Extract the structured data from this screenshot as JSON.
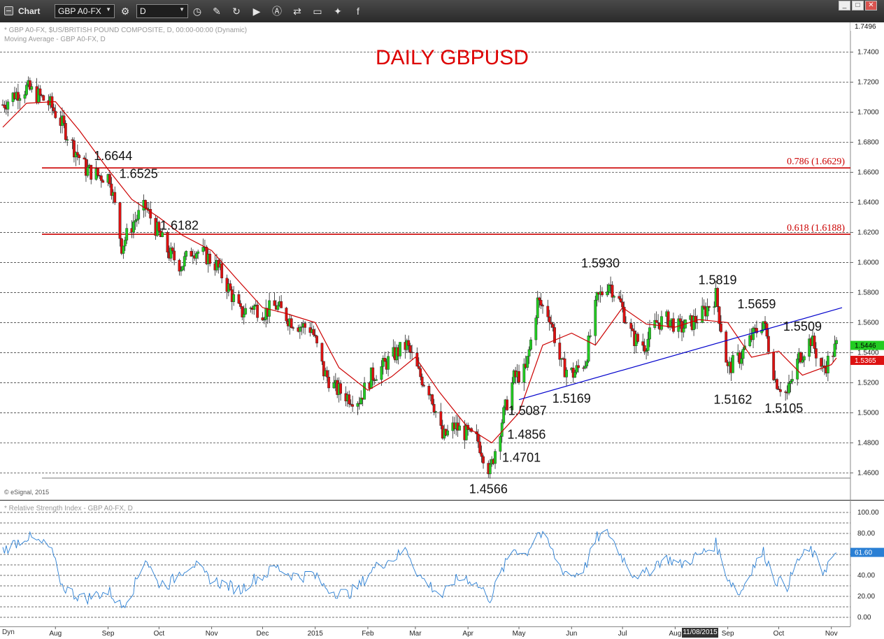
{
  "window": {
    "title": "Chart",
    "symbol": "GBP A0-FX",
    "interval": "D",
    "toolbar_icons": [
      "settings-gear-icon",
      "refresh-clock-icon",
      "pencil-icon",
      "cycle-icon",
      "play-icon",
      "alert-a-icon",
      "link-icon",
      "comment-icon",
      "twitter-icon",
      "facebook-icon"
    ],
    "buttons": [
      "window-min-icon",
      "window-max-icon",
      "window-close-icon"
    ]
  },
  "price_pane": {
    "header_line1": "* GBP A0-FX, $US/BRITISH POUND COMPOSITE, D, 00:00-00:00 (Dynamic)",
    "header_line2": "Moving Average - GBP A0-FX, D",
    "credit": "© eSignal, 2015",
    "axis_top_price": "1.7496",
    "last_price": "1.5446",
    "ma_value": "1.5365"
  },
  "rsi_pane": {
    "header": "* Relative Strength Index - GBP A0-FX, D",
    "last_value": "61.60"
  },
  "x_axis": {
    "date_tooltip": "11/08/2015",
    "left_label": "Dyn"
  },
  "chart_data": [
    {
      "type": "candlestick",
      "title": "DAILY GBPUSD",
      "x_range": [
        "2014-07-01",
        "2015-11-04"
      ],
      "ylim": [
        1.456,
        1.75
      ],
      "yticks": [
        "1.4600",
        "1.4800",
        "1.5000",
        "1.5200",
        "1.5400",
        "1.5600",
        "1.5800",
        "1.6000",
        "1.6200",
        "1.6400",
        "1.6600",
        "1.6800",
        "1.7000",
        "1.7200",
        "1.7400"
      ],
      "xticks": [
        {
          "label": "Aug",
          "date": "2014-08-01"
        },
        {
          "label": "Sep",
          "date": "2014-09-01"
        },
        {
          "label": "Oct",
          "date": "2014-10-01"
        },
        {
          "label": "Nov",
          "date": "2014-11-01"
        },
        {
          "label": "Dec",
          "date": "2014-12-01"
        },
        {
          "label": "2015",
          "date": "2015-01-01"
        },
        {
          "label": "Feb",
          "date": "2015-02-01"
        },
        {
          "label": "Mar",
          "date": "2015-03-01"
        },
        {
          "label": "Apr",
          "date": "2015-04-01"
        },
        {
          "label": "May",
          "date": "2015-05-01"
        },
        {
          "label": "Jun",
          "date": "2015-06-01"
        },
        {
          "label": "Jul",
          "date": "2015-07-01"
        },
        {
          "label": "Aug",
          "date": "2015-08-01"
        },
        {
          "label": "Sep",
          "date": "2015-09-01"
        },
        {
          "label": "Oct",
          "date": "2015-10-01"
        },
        {
          "label": "Nov",
          "date": "2015-11-01"
        }
      ],
      "close_path": [
        [
          "2014-07-01",
          1.705
        ],
        [
          "2014-07-08",
          1.712
        ],
        [
          "2014-07-15",
          1.716
        ],
        [
          "2014-07-22",
          1.711
        ],
        [
          "2014-07-29",
          1.705
        ],
        [
          "2014-08-05",
          1.692
        ],
        [
          "2014-08-12",
          1.676
        ],
        [
          "2014-08-19",
          1.662
        ],
        [
          "2014-08-26",
          1.658
        ],
        [
          "2014-09-02",
          1.657
        ],
        [
          "2014-09-09",
          1.611
        ],
        [
          "2014-09-16",
          1.627
        ],
        [
          "2014-09-23",
          1.637
        ],
        [
          "2014-09-30",
          1.621
        ],
        [
          "2014-10-07",
          1.606
        ],
        [
          "2014-10-14",
          1.598
        ],
        [
          "2014-10-21",
          1.609
        ],
        [
          "2014-10-28",
          1.605
        ],
        [
          "2014-11-04",
          1.598
        ],
        [
          "2014-11-11",
          1.583
        ],
        [
          "2014-11-18",
          1.566
        ],
        [
          "2014-11-25",
          1.571
        ],
        [
          "2014-12-02",
          1.567
        ],
        [
          "2014-12-09",
          1.571
        ],
        [
          "2014-12-16",
          1.563
        ],
        [
          "2014-12-23",
          1.558
        ],
        [
          "2014-12-30",
          1.556
        ],
        [
          "2015-01-06",
          1.527
        ],
        [
          "2015-01-13",
          1.516
        ],
        [
          "2015-01-20",
          1.511
        ],
        [
          "2015-01-27",
          1.509
        ],
        [
          "2015-02-03",
          1.524
        ],
        [
          "2015-02-10",
          1.531
        ],
        [
          "2015-02-17",
          1.539
        ],
        [
          "2015-02-24",
          1.545
        ],
        [
          "2015-03-03",
          1.526
        ],
        [
          "2015-03-10",
          1.514
        ],
        [
          "2015-03-17",
          1.483
        ],
        [
          "2015-03-24",
          1.491
        ],
        [
          "2015-03-31",
          1.486
        ],
        [
          "2015-04-07",
          1.481
        ],
        [
          "2015-04-14",
          1.461
        ],
        [
          "2015-04-21",
          1.495
        ],
        [
          "2015-04-28",
          1.523
        ],
        [
          "2015-05-05",
          1.528
        ],
        [
          "2015-05-12",
          1.574
        ],
        [
          "2015-05-19",
          1.565
        ],
        [
          "2015-05-26",
          1.531
        ],
        [
          "2015-06-02",
          1.526
        ],
        [
          "2015-06-09",
          1.534
        ],
        [
          "2015-06-16",
          1.575
        ],
        [
          "2015-06-23",
          1.587
        ],
        [
          "2015-06-30",
          1.572
        ],
        [
          "2015-07-07",
          1.55
        ],
        [
          "2015-07-14",
          1.545
        ],
        [
          "2015-07-21",
          1.56
        ],
        [
          "2015-07-28",
          1.562
        ],
        [
          "2015-08-04",
          1.556
        ],
        [
          "2015-08-11",
          1.56
        ],
        [
          "2015-08-18",
          1.567
        ],
        [
          "2015-08-25",
          1.578
        ],
        [
          "2015-09-01",
          1.529
        ],
        [
          "2015-09-08",
          1.537
        ],
        [
          "2015-09-15",
          1.55
        ],
        [
          "2015-09-22",
          1.561
        ],
        [
          "2015-09-29",
          1.522
        ],
        [
          "2015-10-06",
          1.512
        ],
        [
          "2015-10-13",
          1.537
        ],
        [
          "2015-10-20",
          1.549
        ],
        [
          "2015-10-27",
          1.528
        ],
        [
          "2015-11-04",
          1.5446
        ]
      ],
      "moving_average_path": [
        [
          "2014-07-01",
          1.69
        ],
        [
          "2014-07-15",
          1.706
        ],
        [
          "2014-08-01",
          1.707
        ],
        [
          "2014-08-15",
          1.688
        ],
        [
          "2014-09-01",
          1.662
        ],
        [
          "2014-09-15",
          1.642
        ],
        [
          "2014-10-01",
          1.63
        ],
        [
          "2014-10-15",
          1.618
        ],
        [
          "2014-11-01",
          1.608
        ],
        [
          "2014-11-15",
          1.59
        ],
        [
          "2014-12-01",
          1.57
        ],
        [
          "2014-12-15",
          1.566
        ],
        [
          "2015-01-01",
          1.56
        ],
        [
          "2015-01-15",
          1.53
        ],
        [
          "2015-02-01",
          1.515
        ],
        [
          "2015-02-15",
          1.524
        ],
        [
          "2015-03-01",
          1.537
        ],
        [
          "2015-03-15",
          1.514
        ],
        [
          "2015-04-01",
          1.49
        ],
        [
          "2015-04-15",
          1.48
        ],
        [
          "2015-05-01",
          1.5
        ],
        [
          "2015-05-15",
          1.545
        ],
        [
          "2015-06-01",
          1.553
        ],
        [
          "2015-06-15",
          1.545
        ],
        [
          "2015-07-01",
          1.57
        ],
        [
          "2015-07-15",
          1.559
        ],
        [
          "2015-08-01",
          1.557
        ],
        [
          "2015-08-15",
          1.562
        ],
        [
          "2015-09-01",
          1.56
        ],
        [
          "2015-09-15",
          1.537
        ],
        [
          "2015-10-01",
          1.541
        ],
        [
          "2015-10-15",
          1.525
        ],
        [
          "2015-11-01",
          1.532
        ],
        [
          "2015-11-04",
          1.5365
        ]
      ],
      "annotations": [
        {
          "text": "1.6644",
          "date": "2014-09-04",
          "value": 1.6644,
          "place": "above"
        },
        {
          "text": "1.6525",
          "date": "2014-09-19",
          "value": 1.6525,
          "place": "above"
        },
        {
          "text": "1.6182",
          "date": "2014-10-13",
          "value": 1.6182,
          "place": "above"
        },
        {
          "text": "1.5930",
          "date": "2015-06-18",
          "value": 1.593,
          "place": "above"
        },
        {
          "text": "1.5819",
          "date": "2015-08-26",
          "value": 1.5819,
          "place": "above"
        },
        {
          "text": "1.5659",
          "date": "2015-09-18",
          "value": 1.5659,
          "place": "above"
        },
        {
          "text": "1.5509",
          "date": "2015-10-15",
          "value": 1.5509,
          "place": "above"
        },
        {
          "text": "1.5087",
          "date": "2015-05-06",
          "value": 1.5087,
          "place": "below"
        },
        {
          "text": "1.5169",
          "date": "2015-06-01",
          "value": 1.5169,
          "place": "below"
        },
        {
          "text": "1.5162",
          "date": "2015-09-04",
          "value": 1.5162,
          "place": "below"
        },
        {
          "text": "1.5105",
          "date": "2015-10-04",
          "value": 1.5105,
          "place": "below"
        },
        {
          "text": "1.4856",
          "date": "2015-04-20",
          "value": 1.4856,
          "place": "right"
        },
        {
          "text": "1.4701",
          "date": "2015-04-17",
          "value": 1.4701,
          "place": "right"
        },
        {
          "text": "1.4566",
          "date": "2015-04-13",
          "value": 1.4566,
          "place": "below"
        }
      ],
      "horizontal_levels": [
        {
          "label": "0.786 (1.6629)",
          "value": 1.6629,
          "color": "#cc0000"
        },
        {
          "label": "0.618 (1.6188)",
          "value": 1.6188,
          "color": "#cc0000"
        }
      ],
      "trendline": {
        "from": [
          "2015-05-01",
          1.5087
        ],
        "to": [
          "2015-11-04",
          1.569
        ],
        "color": "#0000cc"
      },
      "colors": {
        "up": "#22cc22",
        "down": "#dd1111",
        "ma": "#cc0000",
        "grid": "#333333",
        "title": "#dd0000"
      }
    },
    {
      "type": "line",
      "title": "Relative Strength Index",
      "ylim": [
        0,
        100
      ],
      "yticks": [
        "0.00",
        "20.00",
        "40.00",
        "60.00",
        "80.00",
        "100.00"
      ],
      "last_value": 61.6,
      "color": "#2a7fd4",
      "series": [
        [
          "2014-07-01",
          64
        ],
        [
          "2014-07-15",
          77
        ],
        [
          "2014-07-29",
          66
        ],
        [
          "2014-08-05",
          30
        ],
        [
          "2014-08-12",
          22
        ],
        [
          "2014-08-19",
          18
        ],
        [
          "2014-08-26",
          22
        ],
        [
          "2014-09-02",
          24
        ],
        [
          "2014-09-09",
          10
        ],
        [
          "2014-09-16",
          28
        ],
        [
          "2014-09-23",
          57
        ],
        [
          "2014-09-30",
          33
        ],
        [
          "2014-10-07",
          32
        ],
        [
          "2014-10-14",
          44
        ],
        [
          "2014-10-21",
          52
        ],
        [
          "2014-10-28",
          40
        ],
        [
          "2014-11-04",
          34
        ],
        [
          "2014-11-11",
          30
        ],
        [
          "2014-11-18",
          26
        ],
        [
          "2014-11-25",
          36
        ],
        [
          "2014-12-02",
          40
        ],
        [
          "2014-12-09",
          48
        ],
        [
          "2014-12-16",
          42
        ],
        [
          "2014-12-23",
          38
        ],
        [
          "2014-12-30",
          42
        ],
        [
          "2015-01-06",
          30
        ],
        [
          "2015-01-13",
          24
        ],
        [
          "2015-01-20",
          22
        ],
        [
          "2015-01-27",
          30
        ],
        [
          "2015-02-03",
          45
        ],
        [
          "2015-02-10",
          52
        ],
        [
          "2015-02-17",
          57
        ],
        [
          "2015-02-24",
          65
        ],
        [
          "2015-03-03",
          40
        ],
        [
          "2015-03-10",
          30
        ],
        [
          "2015-03-17",
          20
        ],
        [
          "2015-03-24",
          35
        ],
        [
          "2015-03-31",
          38
        ],
        [
          "2015-04-07",
          30
        ],
        [
          "2015-04-14",
          18
        ],
        [
          "2015-04-21",
          44
        ],
        [
          "2015-04-28",
          66
        ],
        [
          "2015-05-05",
          60
        ],
        [
          "2015-05-12",
          82
        ],
        [
          "2015-05-19",
          68
        ],
        [
          "2015-05-26",
          46
        ],
        [
          "2015-06-02",
          40
        ],
        [
          "2015-06-09",
          48
        ],
        [
          "2015-06-16",
          76
        ],
        [
          "2015-06-23",
          80
        ],
        [
          "2015-06-30",
          60
        ],
        [
          "2015-07-07",
          42
        ],
        [
          "2015-07-14",
          40
        ],
        [
          "2015-07-21",
          52
        ],
        [
          "2015-07-28",
          56
        ],
        [
          "2015-08-04",
          50
        ],
        [
          "2015-08-11",
          56
        ],
        [
          "2015-08-18",
          62
        ],
        [
          "2015-08-25",
          70
        ],
        [
          "2015-09-01",
          38
        ],
        [
          "2015-09-08",
          22
        ],
        [
          "2015-09-15",
          46
        ],
        [
          "2015-09-22",
          62
        ],
        [
          "2015-09-29",
          36
        ],
        [
          "2015-10-06",
          30
        ],
        [
          "2015-10-13",
          56
        ],
        [
          "2015-10-20",
          64
        ],
        [
          "2015-10-27",
          44
        ],
        [
          "2015-11-04",
          61.6
        ]
      ]
    }
  ]
}
